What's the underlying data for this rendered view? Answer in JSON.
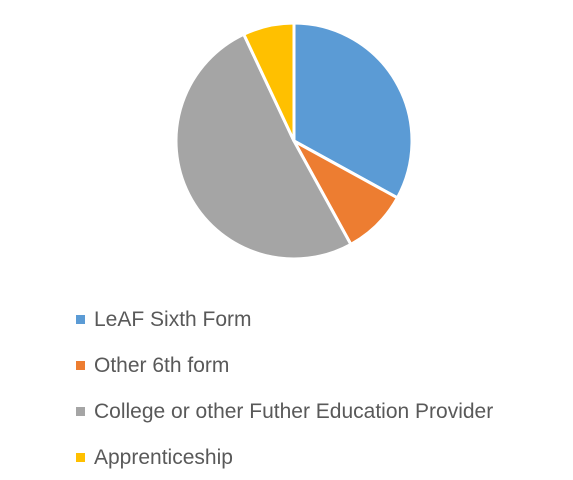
{
  "chart_data": {
    "type": "pie",
    "title": "",
    "categories": [
      "LeAF Sixth Form",
      "Other 6th form",
      "College or other Futher Education Provider",
      "Apprenticeship"
    ],
    "values": [
      33,
      9,
      51,
      7
    ],
    "colors": [
      "#5B9BD5",
      "#ED7D31",
      "#A5A5A5",
      "#FFC000"
    ],
    "legend_position": "bottom"
  }
}
